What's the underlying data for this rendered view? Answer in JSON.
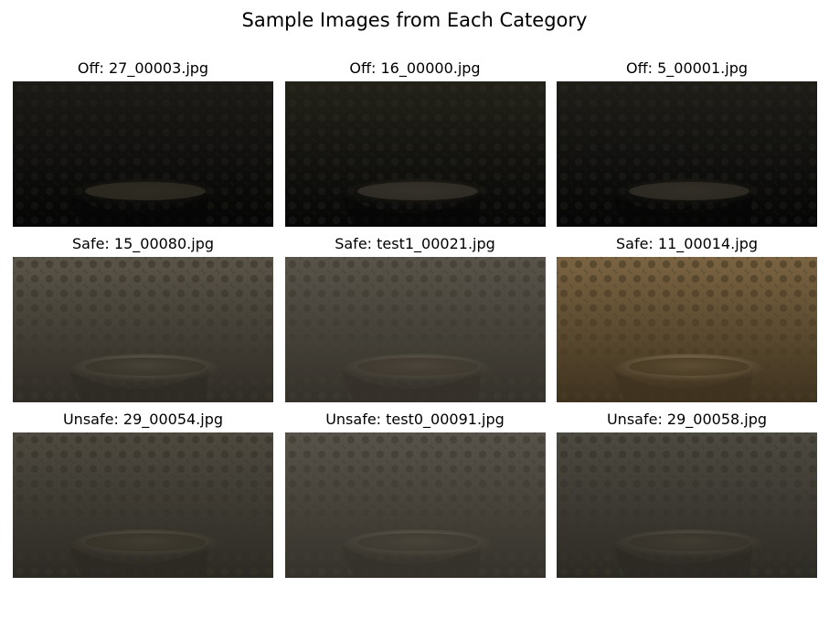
{
  "figure": {
    "title": "Sample Images from Each Category"
  },
  "images": [
    {
      "label": "Off: 27_00003.jpg",
      "category": "Off",
      "tone": {
        "top": "#1c1b17",
        "bottom": "#050505",
        "pattern": "#2e2b22",
        "bowl": "#3a3626"
      }
    },
    {
      "label": "Off: 16_00000.jpg",
      "category": "Off",
      "tone": {
        "top": "#232219",
        "bottom": "#060606",
        "pattern": "#34302a",
        "bowl": "#4a4530"
      }
    },
    {
      "label": "Off: 5_00001.jpg",
      "category": "Off",
      "tone": {
        "top": "#1f1e19",
        "bottom": "#050505",
        "pattern": "#312e27",
        "bowl": "#403b2c"
      }
    },
    {
      "label": "Safe: 15_00080.jpg",
      "category": "Safe",
      "tone": {
        "top": "#5a5448",
        "bottom": "#2e2b25",
        "pattern": "#3a352c",
        "bowl": "#a59a80"
      }
    },
    {
      "label": "Safe: test1_00021.jpg",
      "category": "Safe",
      "tone": {
        "top": "#58544a",
        "bottom": "#34312a",
        "pattern": "#3f3a31",
        "bowl": "#938a72"
      }
    },
    {
      "label": "Safe: 11_00014.jpg",
      "category": "Safe",
      "tone": {
        "top": "#7a6442",
        "bottom": "#3e321f",
        "pattern": "#4a3b24",
        "bowl": "#d8c79a"
      }
    },
    {
      "label": "Unsafe: 29_00054.jpg",
      "category": "Unsafe",
      "tone": {
        "top": "#4e4a40",
        "bottom": "#2c2a24",
        "pattern": "#363229",
        "bowl": "#8e846c"
      }
    },
    {
      "label": "Unsafe: test0_00091.jpg",
      "category": "Unsafe",
      "tone": {
        "top": "#57534a",
        "bottom": "#35322b",
        "pattern": "#3e3a31",
        "bowl": "#978d76"
      }
    },
    {
      "label": "Unsafe: 29_00058.jpg",
      "category": "Unsafe",
      "tone": {
        "top": "#4d4a41",
        "bottom": "#2c2a24",
        "pattern": "#37332a",
        "bowl": "#8b826a"
      }
    }
  ]
}
